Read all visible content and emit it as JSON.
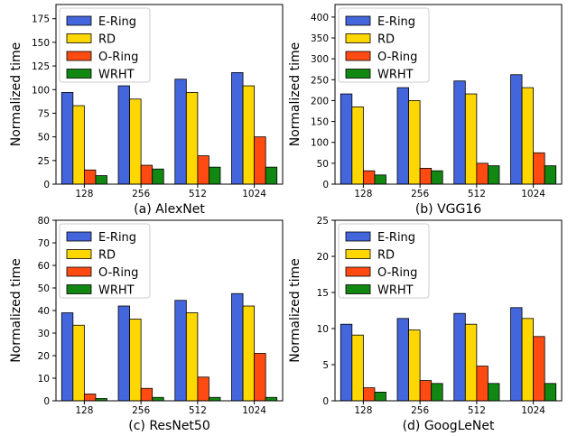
{
  "figure": {
    "ylabel": "Normalized time",
    "legend": [
      "E-Ring",
      "RD",
      "O-Ring",
      "WRHT"
    ],
    "colors": [
      "#4466dd",
      "#ffd700",
      "#ff4b12",
      "#118811"
    ]
  },
  "chart_data": [
    {
      "type": "bar",
      "title": "(a) AlexNet",
      "categories": [
        "128",
        "256",
        "512",
        "1024"
      ],
      "ylabel": "Normalized time",
      "ylim": [
        0,
        190
      ],
      "yticks": [
        0,
        25,
        50,
        75,
        100,
        125,
        150,
        175
      ],
      "legend_position": "top-left",
      "series": [
        {
          "name": "E-Ring",
          "values": [
            97,
            104,
            111,
            118
          ]
        },
        {
          "name": "RD",
          "values": [
            83,
            90,
            97,
            104
          ]
        },
        {
          "name": "O-Ring",
          "values": [
            15,
            20,
            30,
            50
          ]
        },
        {
          "name": "WRHT",
          "values": [
            9,
            16,
            18,
            18
          ]
        }
      ]
    },
    {
      "type": "bar",
      "title": "(b) VGG16",
      "categories": [
        "128",
        "256",
        "512",
        "1024"
      ],
      "ylabel": "Normalized time",
      "ylim": [
        0,
        430
      ],
      "yticks": [
        0,
        50,
        100,
        150,
        200,
        250,
        300,
        350,
        400
      ],
      "legend_position": "top-left",
      "series": [
        {
          "name": "E-Ring",
          "values": [
            216,
            231,
            247,
            262
          ]
        },
        {
          "name": "RD",
          "values": [
            185,
            200,
            216,
            231
          ]
        },
        {
          "name": "O-Ring",
          "values": [
            32,
            38,
            50,
            75
          ]
        },
        {
          "name": "WRHT",
          "values": [
            22,
            32,
            44,
            44
          ]
        }
      ]
    },
    {
      "type": "bar",
      "title": "(c) ResNet50",
      "categories": [
        "128",
        "256",
        "512",
        "1024"
      ],
      "ylabel": "Normalized time",
      "ylim": [
        0,
        80
      ],
      "yticks": [
        0,
        10,
        20,
        30,
        40,
        50,
        60,
        70,
        80
      ],
      "legend_position": "top-left",
      "series": [
        {
          "name": "E-Ring",
          "values": [
            39,
            42,
            44.5,
            47.5
          ]
        },
        {
          "name": "RD",
          "values": [
            33.5,
            36.2,
            39,
            42
          ]
        },
        {
          "name": "O-Ring",
          "values": [
            3,
            5.5,
            10.5,
            21
          ]
        },
        {
          "name": "WRHT",
          "values": [
            1,
            1.5,
            1.5,
            1.5
          ]
        }
      ]
    },
    {
      "type": "bar",
      "title": "(d) GoogLeNet",
      "categories": [
        "128",
        "256",
        "512",
        "1024"
      ],
      "ylabel": "Normalized time",
      "ylim": [
        0,
        25
      ],
      "yticks": [
        0,
        5,
        10,
        15,
        20,
        25
      ],
      "legend_position": "top-left",
      "series": [
        {
          "name": "E-Ring",
          "values": [
            10.6,
            11.4,
            12.1,
            12.9
          ]
        },
        {
          "name": "RD",
          "values": [
            9.1,
            9.8,
            10.6,
            11.4
          ]
        },
        {
          "name": "O-Ring",
          "values": [
            1.8,
            2.8,
            4.8,
            8.9
          ]
        },
        {
          "name": "WRHT",
          "values": [
            1.2,
            2.4,
            2.4,
            2.4
          ]
        }
      ]
    }
  ]
}
